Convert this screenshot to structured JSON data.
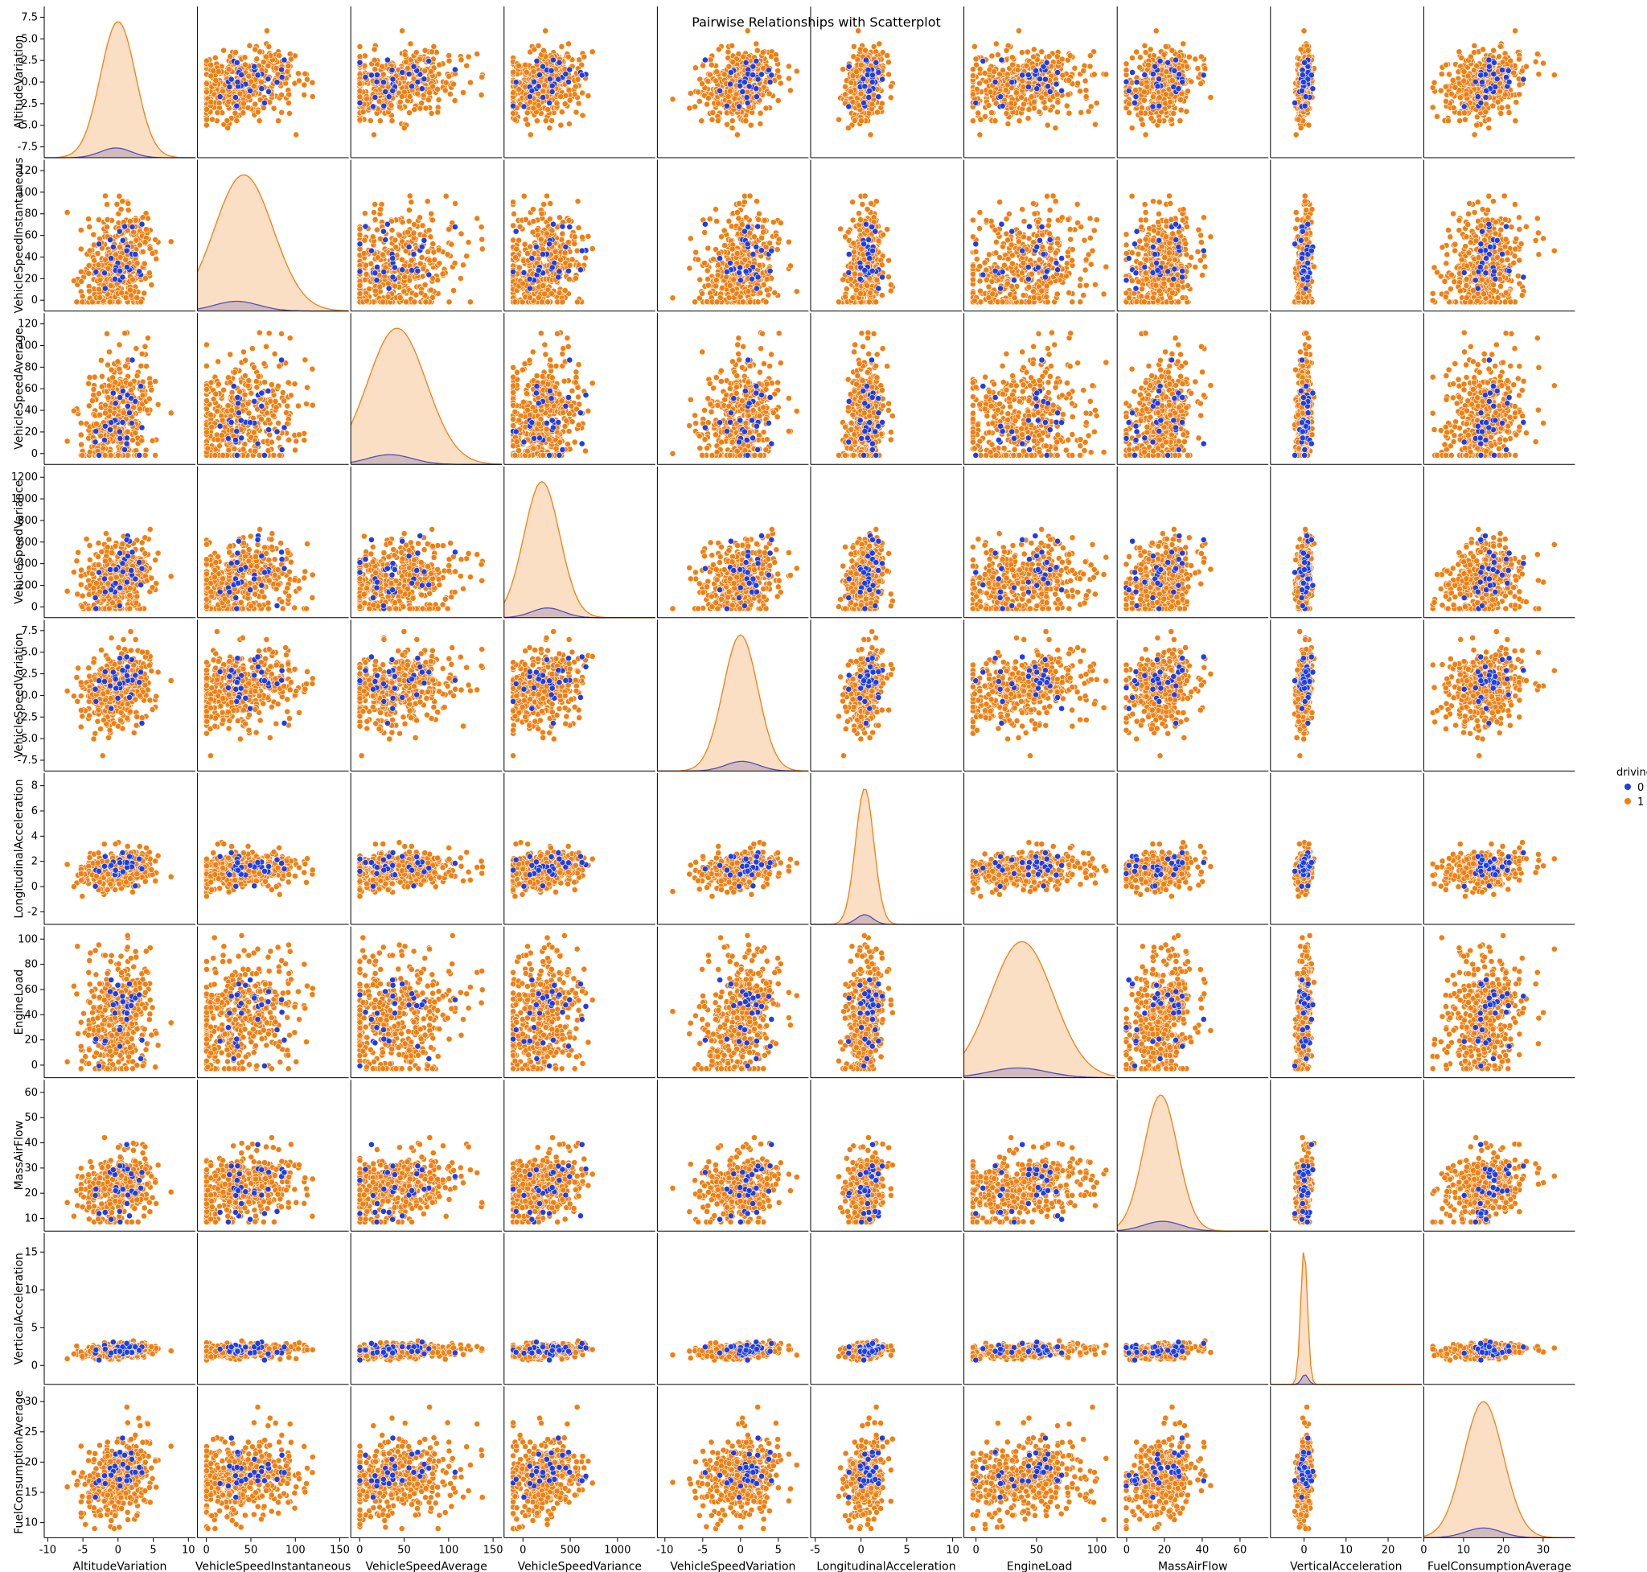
{
  "chart_data": {
    "type": "scatter",
    "kind": "pairplot",
    "title": "Pairwise Relationships with Scatterplot",
    "hue": "drivingStyle",
    "legend": {
      "title": "drivingStyle",
      "placement": "right",
      "entries": [
        {
          "label": "0",
          "color": "#1f3fe6"
        },
        {
          "label": "1",
          "color": "#f07f12"
        }
      ]
    },
    "grid": false,
    "diagonal": "kde",
    "variables": [
      {
        "name": "AltitudeVariation",
        "range": [
          -10.5,
          11
        ],
        "ticks": [
          -10,
          -5,
          0,
          5,
          10
        ],
        "row_ticks": [
          "-7.5",
          "-5.0",
          "-2.5",
          "0.0",
          "2.5",
          "5.0",
          "7.5"
        ]
      },
      {
        "name": "VehicleSpeedInstantaneous",
        "range": [
          -10,
          160
        ],
        "ticks": [
          0,
          50,
          100,
          150
        ],
        "row_ticks": [
          "0",
          "20",
          "40",
          "60",
          "80",
          "100",
          "120"
        ]
      },
      {
        "name": "VehicleSpeedAverage",
        "range": [
          -10,
          160
        ],
        "ticks": [
          0,
          50,
          100,
          150
        ],
        "row_ticks": [
          "0",
          "20",
          "40",
          "60",
          "80",
          "100",
          "120"
        ]
      },
      {
        "name": "VehicleSpeedVariance",
        "range": [
          -200,
          1400
        ],
        "ticks": [
          0,
          500,
          1000
        ],
        "row_ticks": [
          "0",
          "200",
          "400",
          "600",
          "800",
          "1000",
          "1200"
        ]
      },
      {
        "name": "VehicleSpeedVariation",
        "range": [
          -11,
          9
        ],
        "ticks": [
          -10,
          -5,
          0,
          5
        ],
        "row_ticks": [
          "-7.5",
          "-5.0",
          "-2.5",
          "0.0",
          "2.5",
          "5.0",
          "7.5"
        ]
      },
      {
        "name": "LongitudinalAcceleration",
        "range": [
          -5.5,
          11
        ],
        "ticks": [
          -5,
          0,
          5,
          10
        ],
        "row_ticks": [
          "-2",
          "0",
          "2",
          "4",
          "6",
          "8"
        ]
      },
      {
        "name": "EngineLoad",
        "range": [
          -10,
          115
        ],
        "ticks": [
          0,
          50,
          100
        ],
        "row_ticks": [
          "0",
          "20",
          "40",
          "60",
          "80",
          "100"
        ]
      },
      {
        "name": "MassAirFlow",
        "range": [
          -5,
          75
        ],
        "ticks": [
          0,
          20,
          40,
          60
        ],
        "row_ticks": [
          "10",
          "20",
          "30",
          "40",
          "50",
          "60"
        ]
      },
      {
        "name": "VerticalAcceleration",
        "range": [
          -8,
          28
        ],
        "ticks": [
          0,
          10,
          20
        ],
        "row_ticks": [
          "0",
          "5",
          "10",
          "15"
        ]
      },
      {
        "name": "FuelConsumptionAverage",
        "range": [
          0,
          38
        ],
        "ticks": [
          0,
          10,
          20,
          30
        ],
        "row_ticks": [
          "10",
          "15",
          "20",
          "25",
          "30"
        ]
      }
    ],
    "series": [
      {
        "name": "0",
        "color": "#1f3fe6",
        "count": 30,
        "mean": [
          -0.3,
          34,
          34,
          260,
          0.2,
          0.4,
          35,
          19,
          0.2,
          15
        ],
        "sd": [
          2.2,
          25,
          25,
          170,
          2.2,
          0.9,
          24,
          10,
          0.8,
          4.5
        ]
      },
      {
        "name": "1",
        "color": "#f07f12",
        "count": 420,
        "mean": [
          0,
          42,
          42,
          200,
          0,
          0.4,
          38,
          18,
          0,
          15
        ],
        "sd": [
          2.5,
          33,
          33,
          190,
          2.3,
          1.0,
          26,
          9,
          0.8,
          5.0
        ]
      }
    ]
  }
}
